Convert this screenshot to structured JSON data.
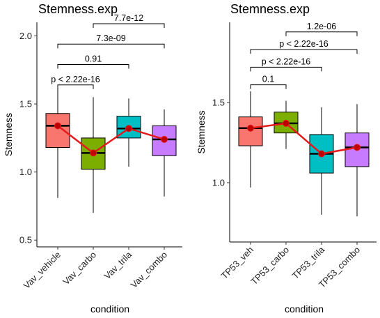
{
  "chart_data": [
    {
      "type": "box",
      "title": "Stemness.exp",
      "xlabel": "condition",
      "ylabel": "Stemness",
      "ylim": [
        0.45,
        2.1
      ],
      "yticks": [
        0.5,
        1.0,
        1.5,
        2.0
      ],
      "ytick_labels": [
        "0.5",
        "1.0",
        "1.5",
        "2.0"
      ],
      "categories": [
        "Vav_vehicle",
        "Vav_carbo",
        "Vav_trila",
        "Vav_combo"
      ],
      "colors": [
        "#F8766D",
        "#7CAE00",
        "#00BFC4",
        "#C77CFF"
      ],
      "boxes": [
        {
          "min": 0.81,
          "q1": 1.18,
          "median": 1.34,
          "q3": 1.43,
          "max": 1.63
        },
        {
          "min": 0.7,
          "q1": 1.02,
          "median": 1.14,
          "q3": 1.25,
          "max": 1.55
        },
        {
          "min": 1.04,
          "q1": 1.25,
          "median": 1.32,
          "q3": 1.41,
          "max": 1.54
        },
        {
          "min": 0.82,
          "q1": 1.12,
          "median": 1.24,
          "q3": 1.34,
          "max": 1.46
        }
      ],
      "mean_line": {
        "color": "#E41A1C",
        "values": [
          1.34,
          1.14,
          1.32,
          1.24
        ]
      },
      "comparisons": [
        {
          "from": 0,
          "to": 1,
          "label": "p < 2.22e-16",
          "y": 1.64
        },
        {
          "from": 0,
          "to": 2,
          "label": "0.91",
          "y": 1.79
        },
        {
          "from": 0,
          "to": 3,
          "label": "7.3e-09",
          "y": 1.94
        },
        {
          "from": 1,
          "to": 3,
          "label": "7.7e-12",
          "y": 2.09
        }
      ]
    },
    {
      "type": "box",
      "title": "Stemness.exp",
      "xlabel": "condition",
      "ylabel": "Stemness",
      "ylim": [
        0.63,
        2.0
      ],
      "yticks": [
        1.0,
        1.5
      ],
      "ytick_labels": [
        "1.0",
        "1.5"
      ],
      "categories": [
        "TP53_veh",
        "TP53_carbo",
        "TP53_trila",
        "TP53_combo"
      ],
      "colors": [
        "#F8766D",
        "#7CAE00",
        "#00BFC4",
        "#C77CFF"
      ],
      "boxes": [
        {
          "min": 0.97,
          "q1": 1.23,
          "median": 1.34,
          "q3": 1.41,
          "max": 1.57
        },
        {
          "min": 1.21,
          "q1": 1.31,
          "median": 1.37,
          "q3": 1.44,
          "max": 1.51
        },
        {
          "min": 0.8,
          "q1": 1.06,
          "median": 1.18,
          "q3": 1.3,
          "max": 1.47
        },
        {
          "min": 0.79,
          "q1": 1.1,
          "median": 1.22,
          "q3": 1.31,
          "max": 1.49
        }
      ],
      "mean_line": {
        "color": "#E41A1C",
        "values": [
          1.34,
          1.37,
          1.18,
          1.22
        ]
      },
      "comparisons": [
        {
          "from": 0,
          "to": 1,
          "label": "0.1",
          "y": 1.61
        },
        {
          "from": 0,
          "to": 2,
          "label": "p < 2.22e-16",
          "y": 1.72
        },
        {
          "from": 0,
          "to": 3,
          "label": "p < 2.22e-16",
          "y": 1.83
        },
        {
          "from": 1,
          "to": 3,
          "label": "1.2e-06",
          "y": 1.94
        }
      ]
    }
  ]
}
